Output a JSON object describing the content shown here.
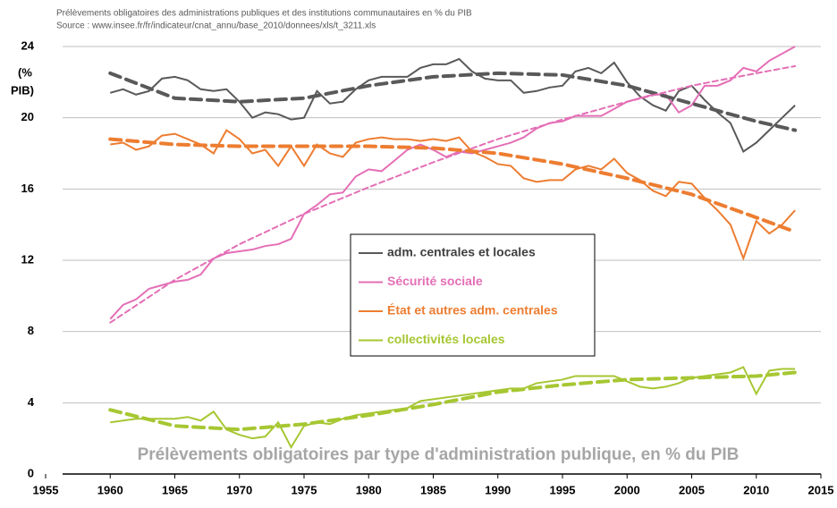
{
  "chart_data": {
    "type": "line",
    "header": [
      "Prélèvements obligatoires des administrations publiques et des institutions communautaires en % du PIB",
      "Source : www.insee.fr/fr/indicateur/cnat_annu/base_2010/donnees/xls/t_3211.xls"
    ],
    "title": "Prélèvements obligatoires par type d'administration publique, en % du PIB",
    "y_label": [
      "(%",
      "PIB)"
    ],
    "xlim": [
      1955,
      2015
    ],
    "xticks": [
      1955,
      1960,
      1965,
      1970,
      1975,
      1980,
      1985,
      1990,
      1995,
      2000,
      2005,
      2010,
      2015
    ],
    "ylim": [
      0,
      24
    ],
    "yticks": [
      0,
      4,
      8,
      12,
      16,
      20,
      24
    ],
    "grid": true,
    "x": [
      1960,
      1961,
      1962,
      1963,
      1964,
      1965,
      1966,
      1967,
      1968,
      1969,
      1970,
      1971,
      1972,
      1973,
      1974,
      1975,
      1976,
      1977,
      1978,
      1979,
      1980,
      1981,
      1982,
      1983,
      1984,
      1985,
      1986,
      1987,
      1988,
      1989,
      1990,
      1991,
      1992,
      1993,
      1994,
      1995,
      1996,
      1997,
      1998,
      1999,
      2000,
      2001,
      2002,
      2003,
      2004,
      2005,
      2006,
      2007,
      2008,
      2009,
      2010,
      2011,
      2012,
      2013
    ],
    "series": [
      {
        "name": "adm. centrales et locales",
        "color": "#595959",
        "values": [
          21.4,
          21.6,
          21.3,
          21.5,
          22.2,
          22.3,
          22.1,
          21.6,
          21.5,
          21.6,
          20.9,
          20.0,
          20.3,
          20.2,
          19.9,
          20.0,
          21.5,
          20.8,
          20.9,
          21.6,
          22.1,
          22.3,
          22.3,
          22.3,
          22.8,
          23.0,
          23.0,
          23.3,
          22.6,
          22.2,
          22.1,
          22.1,
          21.4,
          21.5,
          21.7,
          21.8,
          22.6,
          22.8,
          22.5,
          23.1,
          22.0,
          21.2,
          20.7,
          20.4,
          21.5,
          21.8,
          21.0,
          20.3,
          19.7,
          18.1,
          18.6,
          19.3,
          20.0,
          20.7
        ]
      },
      {
        "name": "Sécurité sociale",
        "color": "#e46fb6",
        "values": [
          8.7,
          9.5,
          9.8,
          10.4,
          10.6,
          10.8,
          10.9,
          11.2,
          12.1,
          12.4,
          12.5,
          12.6,
          12.8,
          12.9,
          13.2,
          14.6,
          15.1,
          15.7,
          15.8,
          16.7,
          17.1,
          17.0,
          17.6,
          18.2,
          18.5,
          18.2,
          17.8,
          18.1,
          18.0,
          18.2,
          18.4,
          18.6,
          18.9,
          19.4,
          19.7,
          19.8,
          20.1,
          20.1,
          20.1,
          20.5,
          20.9,
          21.1,
          21.3,
          21.3,
          20.3,
          20.7,
          21.8,
          21.8,
          22.1,
          22.8,
          22.6,
          23.2,
          23.6,
          24.0
        ]
      },
      {
        "name": "État et autres adm. centrales",
        "color": "#ed7d31",
        "values": [
          18.5,
          18.6,
          18.2,
          18.4,
          19.0,
          19.1,
          18.8,
          18.5,
          18.0,
          19.3,
          18.8,
          18.0,
          18.2,
          17.3,
          18.4,
          17.3,
          18.5,
          18.0,
          17.8,
          18.6,
          18.8,
          18.9,
          18.8,
          18.8,
          18.7,
          18.8,
          18.7,
          18.9,
          18.1,
          17.8,
          17.4,
          17.3,
          16.6,
          16.4,
          16.5,
          16.5,
          17.1,
          17.3,
          17.1,
          17.7,
          16.9,
          16.5,
          15.9,
          15.6,
          16.4,
          16.3,
          15.5,
          14.8,
          14.0,
          12.1,
          14.2,
          13.5,
          14.0,
          14.8
        ]
      },
      {
        "name": "collectivités locales",
        "color": "#a6c732",
        "values": [
          2.9,
          3.0,
          3.1,
          3.1,
          3.1,
          3.1,
          3.2,
          3.0,
          3.5,
          2.5,
          2.2,
          2.0,
          2.1,
          2.9,
          1.5,
          2.7,
          2.9,
          2.8,
          3.1,
          3.3,
          3.4,
          3.5,
          3.6,
          3.7,
          4.1,
          4.2,
          4.3,
          4.4,
          4.5,
          4.6,
          4.7,
          4.8,
          4.8,
          5.1,
          5.2,
          5.3,
          5.5,
          5.5,
          5.5,
          5.5,
          5.2,
          4.9,
          4.8,
          4.9,
          5.1,
          5.4,
          5.5,
          5.6,
          5.7,
          6.0,
          4.5,
          5.8,
          5.9,
          5.9
        ]
      }
    ],
    "trend_x": [
      1960,
      1965,
      1970,
      1975,
      1980,
      1985,
      1990,
      1995,
      2000,
      2005,
      2010,
      2013
    ],
    "trends": [
      {
        "color": "#595959",
        "values": [
          22.5,
          21.1,
          20.9,
          21.1,
          21.8,
          22.3,
          22.5,
          22.4,
          21.8,
          20.8,
          19.8,
          19.3
        ]
      },
      {
        "color": "#e46fb6",
        "values": [
          8.5,
          10.9,
          12.9,
          14.6,
          16.1,
          17.5,
          18.8,
          19.9,
          20.9,
          21.8,
          22.5,
          22.9
        ]
      },
      {
        "color": "#ed7d31",
        "values": [
          18.8,
          18.5,
          18.4,
          18.4,
          18.4,
          18.3,
          18.0,
          17.4,
          16.6,
          15.7,
          14.4,
          13.6
        ]
      },
      {
        "color": "#a6c732",
        "values": [
          3.6,
          2.7,
          2.5,
          2.8,
          3.3,
          3.9,
          4.6,
          5.0,
          5.3,
          5.4,
          5.5,
          5.7
        ]
      }
    ]
  }
}
